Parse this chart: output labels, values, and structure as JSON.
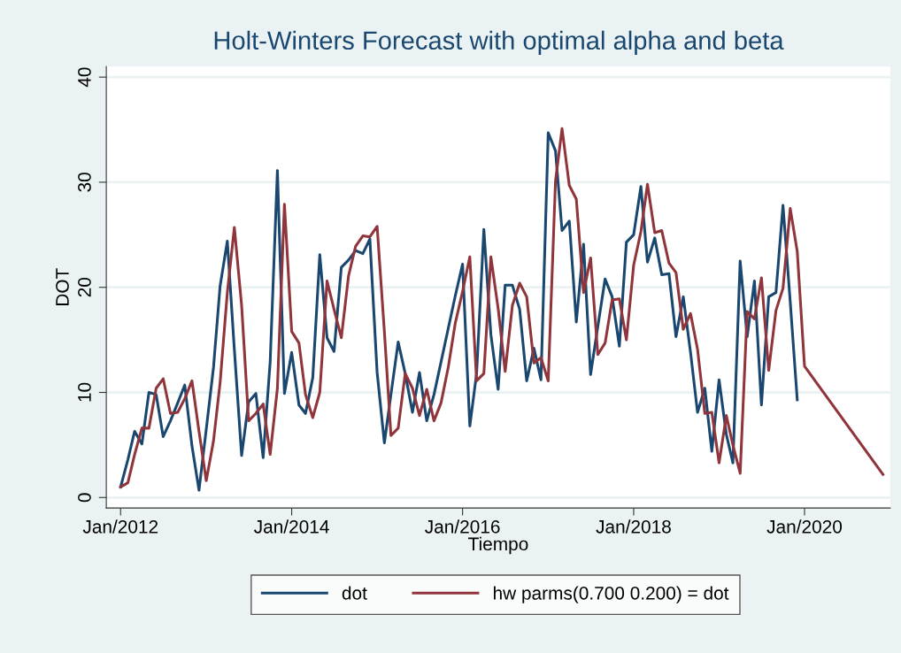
{
  "chart_data": {
    "type": "line",
    "title": "Holt-Winters Forecast with optimal alpha and beta",
    "xlabel": "Tiempo",
    "ylabel": "DOT",
    "x": [
      "2012-01",
      "2012-02",
      "2012-03",
      "2012-04",
      "2012-05",
      "2012-06",
      "2012-07",
      "2012-08",
      "2012-09",
      "2012-10",
      "2012-11",
      "2012-12",
      "2013-01",
      "2013-02",
      "2013-03",
      "2013-04",
      "2013-05",
      "2013-06",
      "2013-07",
      "2013-08",
      "2013-09",
      "2013-10",
      "2013-11",
      "2013-12",
      "2014-01",
      "2014-02",
      "2014-03",
      "2014-04",
      "2014-05",
      "2014-06",
      "2014-07",
      "2014-08",
      "2014-09",
      "2014-10",
      "2014-11",
      "2014-12",
      "2015-01",
      "2015-02",
      "2015-03",
      "2015-04",
      "2015-05",
      "2015-06",
      "2015-07",
      "2015-08",
      "2015-09",
      "2015-10",
      "2015-11",
      "2015-12",
      "2016-01",
      "2016-02",
      "2016-03",
      "2016-04",
      "2016-05",
      "2016-06",
      "2016-07",
      "2016-08",
      "2016-09",
      "2016-10",
      "2016-11",
      "2016-12",
      "2017-01",
      "2017-02",
      "2017-03",
      "2017-04",
      "2017-05",
      "2017-06",
      "2017-07",
      "2017-08",
      "2017-09",
      "2017-10",
      "2017-11",
      "2017-12",
      "2018-01",
      "2018-02",
      "2018-03",
      "2018-04",
      "2018-05",
      "2018-06",
      "2018-07",
      "2018-08",
      "2018-09",
      "2018-10",
      "2018-11",
      "2018-12",
      "2019-01",
      "2019-02",
      "2019-03",
      "2019-04",
      "2019-05",
      "2019-06",
      "2019-07",
      "2019-08",
      "2019-09",
      "2019-10",
      "2019-11",
      "2019-12"
    ],
    "series": [
      {
        "name": "dot",
        "color": "#1a476f",
        "values": [
          1.0,
          3.6,
          6.3,
          5.1,
          10.0,
          9.8,
          5.8,
          7.3,
          9.0,
          10.7,
          4.9,
          0.7,
          6.5,
          12.4,
          20.1,
          24.4,
          14.1,
          4.0,
          9.1,
          9.9,
          3.8,
          12.9,
          31.1,
          9.9,
          13.8,
          8.8,
          8.0,
          11.4,
          23.1,
          15.2,
          13.9,
          21.9,
          22.6,
          23.5,
          23.2,
          24.6,
          11.9,
          5.2,
          9.8,
          14.8,
          11.8,
          8.1,
          11.9,
          7.3,
          9.8,
          12.9,
          16.1,
          19.2,
          22.2,
          6.8,
          11.8,
          25.5,
          15.5,
          10.3,
          20.2,
          20.2,
          17.9,
          11.1,
          14.2,
          11.2,
          34.7,
          33.0,
          25.4,
          26.3,
          16.7,
          24.1,
          11.7,
          16.3,
          20.8,
          19.1,
          14.4,
          24.3,
          25.0,
          29.6,
          22.4,
          24.7,
          21.2,
          21.3,
          15.3,
          19.1,
          13.8,
          8.1,
          10.4,
          4.4,
          11.2,
          6.0,
          3.3,
          22.5,
          15.3,
          20.6,
          8.8,
          19.1,
          19.5,
          27.8,
          18.6,
          9.3
        ]
      },
      {
        "name": "hw parms(0.700 0.200) = dot",
        "color": "#90353b",
        "x": [
          "2012-01",
          "2012-02",
          "2012-03",
          "2012-04",
          "2012-05",
          "2012-06",
          "2012-07",
          "2012-08",
          "2012-09",
          "2012-10",
          "2012-11",
          "2012-12",
          "2013-01",
          "2013-02",
          "2013-03",
          "2013-04",
          "2013-05",
          "2013-06",
          "2013-07",
          "2013-08",
          "2013-09",
          "2013-10",
          "2013-11",
          "2013-12",
          "2014-01",
          "2014-02",
          "2014-03",
          "2014-04",
          "2014-05",
          "2014-06",
          "2014-07",
          "2014-08",
          "2014-09",
          "2014-10",
          "2014-11",
          "2014-12",
          "2015-01",
          "2015-02",
          "2015-03",
          "2015-04",
          "2015-05",
          "2015-06",
          "2015-07",
          "2015-08",
          "2015-09",
          "2015-10",
          "2015-11",
          "2015-12",
          "2016-01",
          "2016-02",
          "2016-03",
          "2016-04",
          "2016-05",
          "2016-06",
          "2016-07",
          "2016-08",
          "2016-09",
          "2016-10",
          "2016-11",
          "2016-12",
          "2017-01",
          "2017-02",
          "2017-03",
          "2017-04",
          "2017-05",
          "2017-06",
          "2017-07",
          "2017-08",
          "2017-09",
          "2017-10",
          "2017-11",
          "2017-12",
          "2018-01",
          "2018-02",
          "2018-03",
          "2018-04",
          "2018-05",
          "2018-06",
          "2018-07",
          "2018-08",
          "2018-09",
          "2018-10",
          "2018-11",
          "2018-12",
          "2019-01",
          "2019-02",
          "2019-03",
          "2019-04",
          "2019-05",
          "2019-06",
          "2019-07",
          "2019-08",
          "2019-09",
          "2019-10",
          "2019-11",
          "2019-12",
          "2020-01",
          "2020-12"
        ],
        "values": [
          1.0,
          1.4,
          4.1,
          6.6,
          6.6,
          10.4,
          11.3,
          8.0,
          8.1,
          9.4,
          11.1,
          6.3,
          1.6,
          5.4,
          10.9,
          19.5,
          25.7,
          18.3,
          7.3,
          8.0,
          8.9,
          4.1,
          10.4,
          27.9,
          15.8,
          14.7,
          9.8,
          7.6,
          10.0,
          20.6,
          17.9,
          15.2,
          21.1,
          23.9,
          24.9,
          24.8,
          25.8,
          15.8,
          5.9,
          6.6,
          11.8,
          10.4,
          7.8,
          10.3,
          7.3,
          9.0,
          12.4,
          16.6,
          19.6,
          22.9,
          11.1,
          11.8,
          22.9,
          18.0,
          12.0,
          18.3,
          20.4,
          19.1,
          12.8,
          13.3,
          11.1,
          30.1,
          35.1,
          29.7,
          28.4,
          19.5,
          22.8,
          13.6,
          14.7,
          18.8,
          18.9,
          15.0,
          22.1,
          25.3,
          29.8,
          25.2,
          25.4,
          22.3,
          21.4,
          16.0,
          17.5,
          14.1,
          8.0,
          8.1,
          3.3,
          7.8,
          5.0,
          2.3,
          17.7,
          17.0,
          20.9,
          12.1,
          17.8,
          19.9,
          27.5,
          23.4,
          12.5,
          2.2
        ]
      }
    ],
    "xlim": [
      "2011-11",
      "2021-01"
    ],
    "xticks": [
      {
        "value": "2012-01",
        "label": "Jan/2012"
      },
      {
        "value": "2014-01",
        "label": "Jan/2014"
      },
      {
        "value": "2016-01",
        "label": "Jan/2016"
      },
      {
        "value": "2018-01",
        "label": "Jan/2018"
      },
      {
        "value": "2020-01",
        "label": "Jan/2020"
      }
    ],
    "ylim": [
      -1,
      41
    ],
    "yticks": [
      0,
      10,
      20,
      30,
      40
    ],
    "grid": "y",
    "legend": "bottom",
    "marker": "none",
    "line_style": "solid"
  }
}
